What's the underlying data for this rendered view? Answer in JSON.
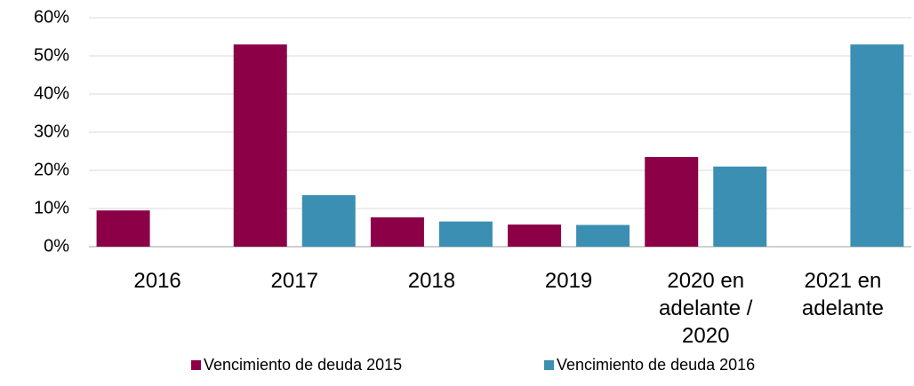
{
  "chart_data": {
    "type": "bar",
    "categories": [
      "2016",
      "2017",
      "2018",
      "2019",
      "2020 en adelante / 2020",
      "2021 en adelante"
    ],
    "series": [
      {
        "name": "Vencimiento de deuda 2015",
        "color": "#8c0048",
        "values": [
          9.5,
          53,
          7.7,
          5.8,
          23.5,
          null
        ]
      },
      {
        "name": "Vencimiento de deuda 2016",
        "color": "#3a8fb2",
        "values": [
          null,
          13.5,
          6.6,
          5.7,
          21,
          53
        ]
      }
    ],
    "ylim": [
      0,
      60
    ],
    "yticks": [
      {
        "value": 0,
        "label": "0%"
      },
      {
        "value": 10,
        "label": "10%"
      },
      {
        "value": 20,
        "label": "20%"
      },
      {
        "value": 30,
        "label": "30%"
      },
      {
        "value": 40,
        "label": "40%"
      },
      {
        "value": 50,
        "label": "50%"
      },
      {
        "value": 60,
        "label": "60%"
      }
    ],
    "grid": true
  }
}
